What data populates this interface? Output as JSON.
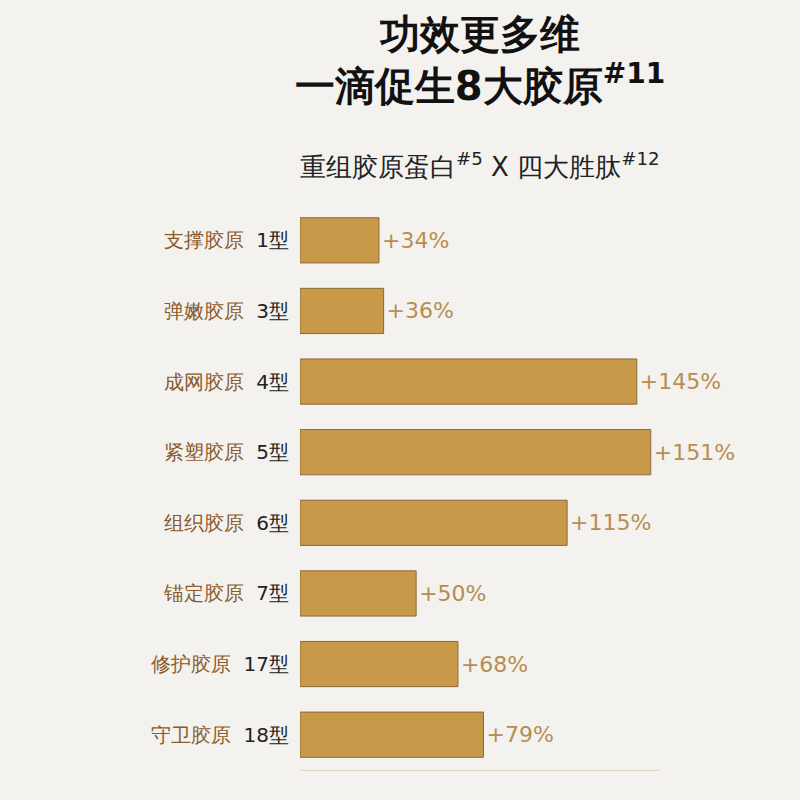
{
  "chart_data": {
    "type": "bar",
    "orientation": "horizontal",
    "title": [
      "功效更多维",
      "一滴促生8大胶原"
    ],
    "title_note": "#11",
    "subtitle": [
      {
        "text": "重组胶原蛋白",
        "note": "#5"
      },
      {
        "text": "X"
      },
      {
        "text": "四大胜肽",
        "note": "#12"
      }
    ],
    "categories": [
      "支撑胶原 1型",
      "弹嫩胶原 3型",
      "成网胶原 4型",
      "紧塑胶原 5型",
      "组织胶原 6型",
      "锚定胶原 7型",
      "修护胶原 17型",
      "守卫胶原 18型"
    ],
    "values": [
      34,
      36,
      145,
      151,
      115,
      50,
      68,
      79
    ],
    "value_labels": [
      "+34%",
      "+36%",
      "+145%",
      "+151%",
      "+115%",
      "+50%",
      "+68%",
      "+79%"
    ],
    "color": "#c9994a",
    "xlim": [
      0,
      155
    ],
    "data_labels": true,
    "tick_labels": "y",
    "grid": false
  }
}
